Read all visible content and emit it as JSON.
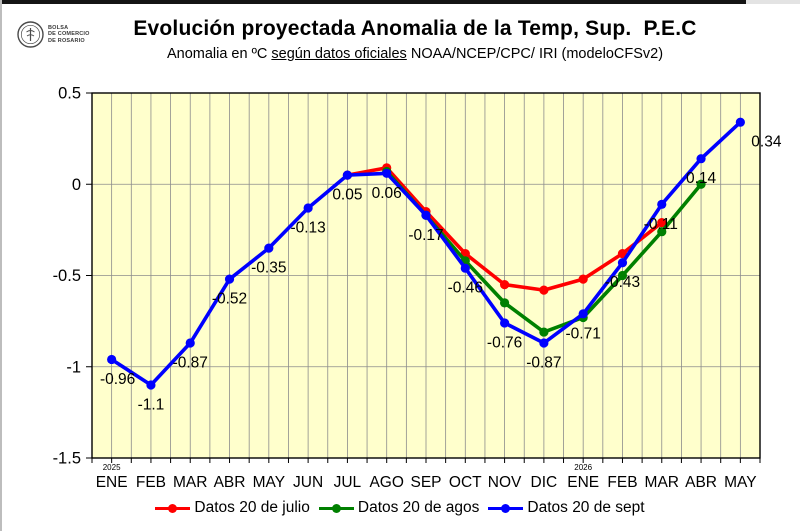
{
  "logo": {
    "name": "Bolsa de Comercio de Rosario",
    "lines": [
      "BOLSA",
      "DE COMERCIO",
      "DE ROSARIO"
    ]
  },
  "header": {
    "title": "Evolución proyectada Anomalia de la Temp, Sup.  P.E.C",
    "subtitle_prefix": "Anomalia en ºC ",
    "subtitle_underlined": "según datos oficiales",
    "subtitle_suffix": " NOAA/NCEP/CPC/ IRI (modeloCFSv2)"
  },
  "chart_data": {
    "type": "line",
    "title": "Evolución proyectada Anomalia de la Temp, Sup. P.E.C",
    "subtitle": "Anomalia en ºC según datos oficiales NOAA/NCEP/CPC/ IRI (modeloCFSv2)",
    "categories": [
      "ENE",
      "FEB",
      "MAR",
      "ABR",
      "MAY",
      "JUN",
      "JUL",
      "AGO",
      "SEP",
      "OCT",
      "NOV",
      "DIC",
      "ENE",
      "FEB",
      "MAR",
      "ABR",
      "MAY"
    ],
    "year_markers": [
      {
        "index": 0,
        "label": "2025"
      },
      {
        "index": 12,
        "label": "2026"
      }
    ],
    "y_ticks": [
      0.5,
      0,
      -0.5,
      -1,
      -1.5
    ],
    "ylim": [
      -1.5,
      0.5
    ],
    "grid": true,
    "plot_background": "#ffffcc",
    "grid_color": "#8c8c8c",
    "legend_position": "bottom",
    "series": [
      {
        "name": "Datos 20 de julio",
        "color": "#ff0000",
        "start_index": 6,
        "values": [
          0.05,
          0.09,
          -0.15,
          -0.38,
          -0.55,
          -0.58,
          -0.52,
          -0.38,
          -0.21
        ],
        "show_labels": false
      },
      {
        "name": "Datos 20 de agos",
        "color": "#008000",
        "start_index": 7,
        "values": [
          0.07,
          -0.17,
          -0.42,
          -0.65,
          -0.81,
          -0.73,
          -0.5,
          -0.26,
          0
        ],
        "show_labels": false
      },
      {
        "name": "Datos 20 de sept",
        "color": "#0000ff",
        "start_index": 0,
        "values": [
          -0.96,
          -1.1,
          -0.87,
          -0.52,
          -0.35,
          -0.13,
          0.05,
          0.06,
          -0.17,
          -0.46,
          -0.76,
          -0.87,
          -0.71,
          -0.43,
          -0.11,
          0.14,
          0.34
        ],
        "show_labels": true,
        "label_texts": [
          "-0.96",
          "-1.1",
          "-0.87",
          "-0.52",
          "-0.35",
          "-0.13",
          "0.05",
          "0.06",
          "-0.17",
          "-0.46",
          "-0.76",
          "-0.87",
          "-0.71",
          "-0.43",
          "-0.11",
          "0.14",
          "0.34"
        ]
      }
    ]
  }
}
